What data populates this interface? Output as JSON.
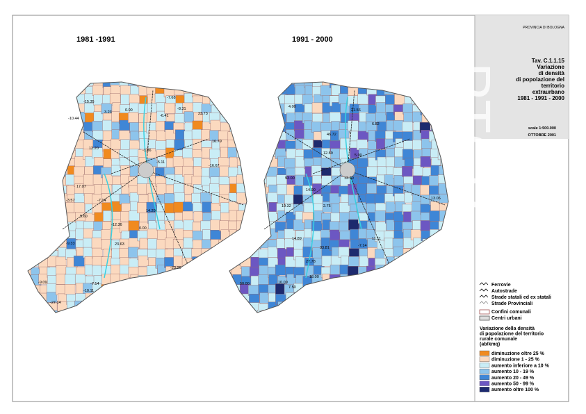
{
  "header": {
    "agency": "PROVINCIA DI BOLOGNA",
    "code": "Tav. C.1.1.15",
    "title_lines": [
      "Variazione",
      "di densità",
      "di popolazione del",
      "territorio",
      "extraurbano",
      "1981 - 1991 - 2000"
    ],
    "scale": "scale 1:500.000",
    "date": "OTTOBRE 2001"
  },
  "maps": [
    {
      "title": "1981 -1991",
      "labels": [
        "-15.35",
        "-10.44",
        "3.23",
        "0.00",
        "-7.68",
        "-8.31",
        "-6.41",
        "23.73",
        "16.79",
        "-16.67",
        "12.20",
        "-1.86",
        "-5.11",
        "17.07",
        "-3.57",
        "-7.14",
        "-12.36",
        "14.29",
        "5.60",
        "-9.33",
        "23.63",
        "0.00",
        "-23.00",
        "-9.09",
        "-27.14",
        "-7.14",
        "-10.11"
      ]
    },
    {
      "title": "1991 - 2000",
      "labels": [
        "4.00",
        "21.56",
        "6.82",
        "46.72",
        "12.89",
        "5.00",
        "13.20",
        "14.90",
        "93.00",
        "19.32",
        "2.75",
        "33.81",
        "27.78",
        "14.89",
        "11.11",
        "18.00",
        "50.00",
        "10.09",
        "7.50",
        "-7.14",
        "13.06"
      ]
    }
  ],
  "legend": {
    "lines": [
      "Ferrovie",
      "Autostrade",
      "Strade statali ed ex statali",
      "Strade Provinciali",
      "Confini comunali",
      "Centri urbani"
    ],
    "choropleth_title": [
      "Variazione della densità",
      "di popolazione del territorio",
      "rurale comunale",
      "(ab/kmq)"
    ],
    "classes": [
      {
        "label": "diminuzione oltre 25 %",
        "color": "#f08a1f"
      },
      {
        "label": "diminuzione 1 - 25 %",
        "color": "#fbd9bf"
      },
      {
        "label": "aumento inferiore a 10 %",
        "color": "#c9edf6"
      },
      {
        "label": "aumento 10 - 19 %",
        "color": "#8dc4ec"
      },
      {
        "label": "aumento 20 - 49 %",
        "color": "#3f86d6"
      },
      {
        "label": "aumento 50 - 99 %",
        "color": "#6c57c2"
      },
      {
        "label": "aumento oltre 100 %",
        "color": "#1d2a6e"
      }
    ]
  }
}
